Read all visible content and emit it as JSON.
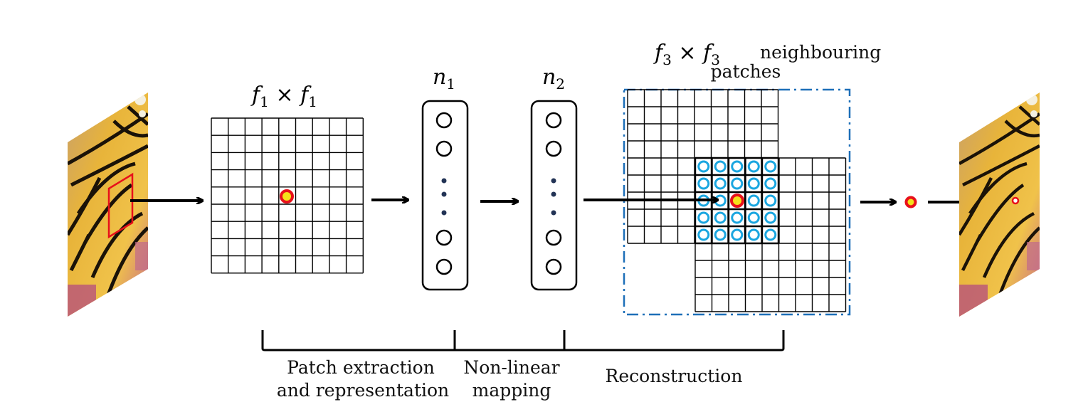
{
  "labels": {
    "patch_size": {
      "symbol": "f",
      "subscript": "1",
      "times": "×"
    },
    "n1": {
      "symbol": "n",
      "subscript": "1"
    },
    "n2": {
      "symbol": "n",
      "subscript": "2"
    },
    "neighbour_size": {
      "symbol": "f",
      "subscript": "3",
      "times": "×"
    },
    "neighbour_text_line1": "neighbouring",
    "neighbour_text_line2": "patches"
  },
  "stages": {
    "stage1_line1": "Patch extraction",
    "stage1_line2": "and representation",
    "stage2_line1": "Non-linear",
    "stage2_line2": "mapping",
    "stage3": "Reconstruction"
  },
  "colors": {
    "grid": "#000000",
    "center_outer": "#e8101a",
    "center_inner": "#f5e11a",
    "neighbour_circle": "#1aa6e0",
    "dashed_box": "#1d6fb8",
    "arrow": "#000000",
    "patch_outline": "#e8101a"
  }
}
